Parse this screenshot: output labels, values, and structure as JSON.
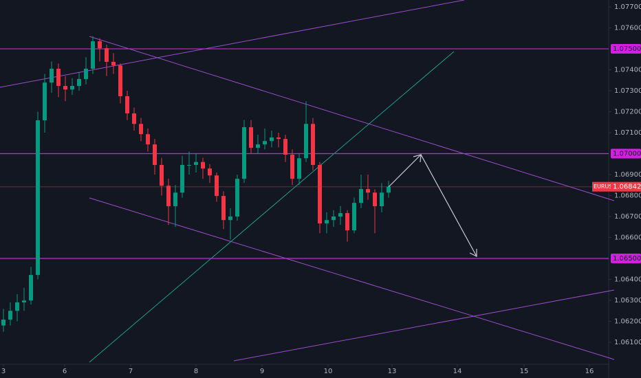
{
  "chart_data": {
    "type": "candlestick",
    "symbol": "EURUSD",
    "up_color": "#089981",
    "down_color": "#f23645",
    "level_color": "#d21fe0",
    "open": [
      1.0618,
      1.06208,
      1.0625,
      1.0629,
      1.06299,
      1.06421,
      1.07159,
      1.07339,
      1.07405,
      1.07323,
      1.07306,
      1.07323,
      1.07356,
      1.07405,
      1.07536,
      1.07503,
      1.07438,
      1.07421,
      1.07274,
      1.07192,
      1.07142,
      1.07093,
      1.07044,
      1.06946,
      1.06847,
      1.06749,
      1.06814,
      1.06946,
      1.06946,
      1.0696,
      1.06929,
      1.06896,
      1.06798,
      1.06683,
      1.067,
      1.0688,
      1.07126,
      1.07028,
      1.07044,
      1.0706,
      1.07077,
      1.0707,
      1.06995,
      1.0688,
      1.06978,
      1.07142,
      1.06946,
      1.06667,
      1.06683,
      1.067,
      1.06716,
      1.06634,
      1.06765,
      1.06831,
      1.06814,
      1.06749,
      1.06814
    ],
    "high": [
      1.0626,
      1.0629,
      1.0633,
      1.0636,
      1.0646,
      1.072,
      1.0738,
      1.0744,
      1.0743,
      1.0737,
      1.0736,
      1.0739,
      1.0746,
      1.0756,
      1.0755,
      1.0752,
      1.0748,
      1.0743,
      1.073,
      1.0722,
      1.0717,
      1.0712,
      1.0707,
      1.0698,
      1.0688,
      1.0685,
      1.0699,
      1.0701,
      1.07,
      1.0698,
      1.0695,
      1.0691,
      1.0682,
      1.0674,
      1.069,
      1.0716,
      1.0716,
      1.0709,
      1.0712,
      1.0711,
      1.071,
      1.0709,
      1.0702,
      1.07,
      1.0725,
      1.0717,
      1.0696,
      1.0672,
      1.0673,
      1.0675,
      1.0673,
      1.0679,
      1.069,
      1.069,
      1.0683,
      1.0686,
      1.0687
    ],
    "low": [
      1.0615,
      1.0618,
      1.062,
      1.0625,
      1.0628,
      1.064,
      1.071,
      1.0729,
      1.0727,
      1.0725,
      1.0728,
      1.073,
      1.0733,
      1.0738,
      1.0744,
      1.0737,
      1.0738,
      1.0724,
      1.0716,
      1.0711,
      1.0706,
      1.0701,
      1.069,
      1.068,
      1.0666,
      1.0665,
      1.0679,
      1.069,
      1.0691,
      1.0688,
      1.0686,
      1.0677,
      1.0664,
      1.0659,
      1.0668,
      1.0686,
      1.07,
      1.07,
      1.0702,
      1.0703,
      1.0703,
      1.0696,
      1.0685,
      1.0685,
      1.0696,
      1.0692,
      1.0662,
      1.0662,
      1.0665,
      1.0666,
      1.0658,
      1.0662,
      1.0674,
      1.0678,
      1.0662,
      1.0672,
      1.0679
    ],
    "close": [
      1.06208,
      1.0625,
      1.0629,
      1.06299,
      1.06421,
      1.07159,
      1.07339,
      1.07405,
      1.07323,
      1.07306,
      1.07323,
      1.07356,
      1.07405,
      1.07536,
      1.07503,
      1.07438,
      1.07421,
      1.07274,
      1.07192,
      1.07142,
      1.07093,
      1.07044,
      1.06946,
      1.06847,
      1.06749,
      1.06814,
      1.06946,
      1.06946,
      1.0696,
      1.06929,
      1.06896,
      1.06798,
      1.06683,
      1.067,
      1.0688,
      1.07126,
      1.07028,
      1.07044,
      1.0706,
      1.07077,
      1.0707,
      1.06995,
      1.0688,
      1.06978,
      1.07142,
      1.06946,
      1.06667,
      1.06683,
      1.067,
      1.06716,
      1.06634,
      1.06765,
      1.06831,
      1.06814,
      1.06749,
      1.06814,
      1.06842
    ],
    "xlim": [
      -0.5,
      88
    ],
    "xticks": [
      {
        "value": 0,
        "label": "3"
      },
      {
        "value": 8.9,
        "label": "6"
      },
      {
        "value": 18.5,
        "label": "7"
      },
      {
        "value": 28,
        "label": "8"
      },
      {
        "value": 37.6,
        "label": "9"
      },
      {
        "value": 47.2,
        "label": "10"
      },
      {
        "value": 56.5,
        "label": "13"
      },
      {
        "value": 66,
        "label": "14"
      },
      {
        "value": 75.7,
        "label": "15"
      },
      {
        "value": 85.2,
        "label": "16"
      }
    ],
    "ylim": [
      1.05995,
      1.07733
    ],
    "yticks": [
      {
        "value": 1.077,
        "label": "1.07700"
      },
      {
        "value": 1.076,
        "label": "1.07600"
      },
      {
        "value": 1.074,
        "label": "1.07400"
      },
      {
        "value": 1.073,
        "label": "1.07300"
      },
      {
        "value": 1.072,
        "label": "1.07200"
      },
      {
        "value": 1.071,
        "label": "1.07100"
      },
      {
        "value": 1.069,
        "label": "1.06900"
      },
      {
        "value": 1.068,
        "label": "1.06800"
      },
      {
        "value": 1.067,
        "label": "1.06700"
      },
      {
        "value": 1.066,
        "label": "1.06600"
      },
      {
        "value": 1.064,
        "label": "1.06400"
      },
      {
        "value": 1.063,
        "label": "1.06300"
      },
      {
        "value": 1.062,
        "label": "1.06200"
      },
      {
        "value": 1.061,
        "label": "1.06100"
      }
    ],
    "levels": [
      {
        "value": 1.075,
        "label": "1.07500"
      },
      {
        "value": 1.07,
        "label": "1.07000"
      },
      {
        "value": 1.065,
        "label": "1.06500"
      }
    ],
    "last_price": {
      "value": 1.06842,
      "label": "1.06842"
    }
  }
}
